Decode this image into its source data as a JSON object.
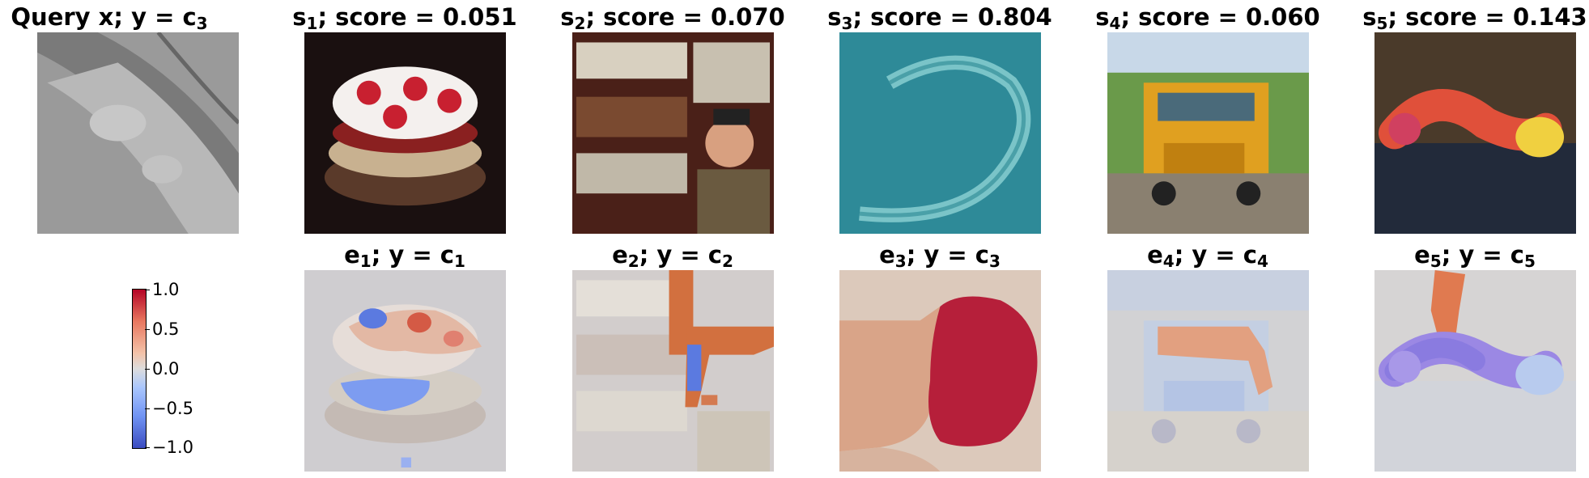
{
  "top_row": [
    {
      "prefix": "Query x; y = c",
      "sub": "3",
      "suffix": ""
    },
    {
      "prefix": "s",
      "sub": "1",
      "suffix": "; score = 0.051"
    },
    {
      "prefix": "s",
      "sub": "2",
      "suffix": "; score = 0.070"
    },
    {
      "prefix": "s",
      "sub": "3",
      "suffix": "; score = 0.804"
    },
    {
      "prefix": "s",
      "sub": "4",
      "suffix": "; score = 0.060"
    },
    {
      "prefix": "s",
      "sub": "5",
      "suffix": "; score = 0.143"
    }
  ],
  "bottom_row": [
    {
      "prefix": "e",
      "sub": "1",
      "mid": "; y = c",
      "sub2": "1"
    },
    {
      "prefix": "e",
      "sub": "2",
      "mid": "; y = c",
      "sub2": "2"
    },
    {
      "prefix": "e",
      "sub": "3",
      "mid": "; y = c",
      "sub2": "3"
    },
    {
      "prefix": "e",
      "sub": "4",
      "mid": "; y = c",
      "sub2": "4"
    },
    {
      "prefix": "e",
      "sub": "5",
      "mid": "; y = c",
      "sub2": "5"
    }
  ],
  "colorbar": {
    "ticks": [
      "1.0",
      "0.5",
      "0.0",
      "−0.5",
      "−1.0"
    ],
    "colors": {
      "max": "#b40426",
      "mid": "#dddddd",
      "min": "#3b4cc0"
    }
  },
  "images": {
    "query": "grayscale microscopy of worm",
    "s1": "strawberry cake",
    "s2": "boy in front of bookshelf",
    "s3": "nematode worm on teal background",
    "s4": "yellow school bus",
    "s5": "caterpillar on ground"
  }
}
